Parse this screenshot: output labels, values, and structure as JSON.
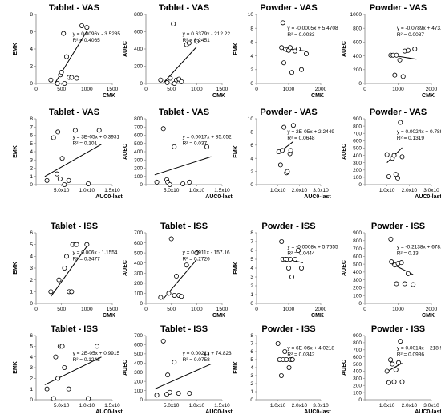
{
  "chart_data": [
    {
      "type": "scatter",
      "title": "Tablet - VAS",
      "xlabel": "CMK",
      "ylabel": "EMK",
      "xlim": [
        0,
        1500
      ],
      "ylim": [
        0,
        8
      ],
      "xticks": [
        "0",
        "500",
        "1000",
        "1500"
      ],
      "yticks": [
        "0",
        "2",
        "4",
        "6",
        "8"
      ],
      "series": [
        {
          "x": [
            290,
            420,
            480,
            500,
            540,
            560,
            600,
            650,
            700,
            800,
            900,
            1000
          ],
          "y": [
            0.4,
            0.0,
            1.0,
            1.3,
            5.8,
            0.0,
            3.1,
            0.7,
            0.7,
            0.6,
            6.7,
            6.5
          ]
        }
      ],
      "fit": {
        "slope": 0.0096,
        "intercept": -3.5285,
        "x": [
          380,
          1000
        ]
      },
      "annotations": [
        "y = 0.0096x - 3.5285",
        "R² = 0.4065"
      ]
    },
    {
      "type": "scatter",
      "title": "Tablet - VAS",
      "xlabel": "CMK",
      "ylabel": "AUEC",
      "xlim": [
        0,
        1500
      ],
      "ylim": [
        0,
        800
      ],
      "xticks": [
        "0",
        "500",
        "1000",
        "1500"
      ],
      "yticks": [
        "0",
        "200",
        "400",
        "600",
        "800"
      ],
      "series": [
        {
          "x": [
            290,
            420,
            480,
            540,
            560,
            600,
            650,
            700,
            800,
            850,
            1000
          ],
          "y": [
            40,
            10,
            60,
            690,
            0,
            40,
            50,
            20,
            450,
            470,
            490
          ]
        }
      ],
      "fit": {
        "slope": 0.6379,
        "intercept": -212.22,
        "x": [
          340,
          1000
        ]
      },
      "annotations": [
        "y = 0.6379x - 212.22",
        "R² = 0.2451"
      ]
    },
    {
      "type": "scatter",
      "title": "Powder - VAS",
      "xlabel": "CMK",
      "ylabel": "EMK",
      "xlim": [
        0,
        2000
      ],
      "ylim": [
        0,
        10
      ],
      "xticks": [
        "0",
        "1000",
        "2000"
      ],
      "yticks": [
        "0",
        "2",
        "4",
        "6",
        "8",
        "10"
      ],
      "series": [
        {
          "x": [
            780,
            820,
            850,
            900,
            950,
            1000,
            1050,
            1100,
            1200,
            1300,
            1400,
            1550
          ],
          "y": [
            5.2,
            8.8,
            3.0,
            5.0,
            4.9,
            4.8,
            5.2,
            1.6,
            4.7,
            5.0,
            2.0,
            4.3
          ]
        }
      ],
      "fit": {
        "slope": -0.0005,
        "intercept": 5.4708,
        "x": [
          780,
          1550
        ]
      },
      "annotations": [
        "y = -0.0005x + 5.4708",
        "R² = 0.0033"
      ]
    },
    {
      "type": "scatter",
      "title": "Powder - VAS",
      "xlabel": "CMK",
      "ylabel": "AUEC",
      "xlim": [
        0,
        2000
      ],
      "ylim": [
        0,
        1000
      ],
      "xticks": [
        "0",
        "1000",
        "2000"
      ],
      "yticks": [
        "0",
        "200",
        "400",
        "600",
        "800",
        "1000"
      ],
      "series": [
        {
          "x": [
            780,
            850,
            900,
            950,
            1050,
            1150,
            1200,
            1300,
            1500
          ],
          "y": [
            410,
            410,
            120,
            410,
            340,
            100,
            470,
            480,
            500
          ]
        }
      ],
      "fit": {
        "slope": -0.0789,
        "intercept": 473.64,
        "x": [
          780,
          1550
        ]
      },
      "annotations": [
        "y = -0.0789x + 473.64",
        "R² = 0.0087"
      ]
    },
    {
      "type": "scatter",
      "title": "Tablet - VAS",
      "xlabel": "AUC0-last",
      "ylabel": "EMK",
      "xlim": [
        0,
        175000
      ],
      "ylim": [
        0,
        8
      ],
      "xticks": [
        "",
        "5.0x10",
        "1.0x10",
        "1.5x10"
      ],
      "yticks": [
        "0",
        "1",
        "2",
        "3",
        "4",
        "5",
        "6",
        "7",
        "8"
      ],
      "series": [
        {
          "x": [
            25000,
            40000,
            48000,
            50000,
            55000,
            60000,
            65000,
            75000,
            90000,
            120000,
            145000
          ],
          "y": [
            0.5,
            5.7,
            1.3,
            6.4,
            0.7,
            3.2,
            0.0,
            0.5,
            6.6,
            0.1,
            6.6
          ]
        }
      ],
      "fit": {
        "slope": 3e-05,
        "intercept": 0.3931,
        "x": [
          20000,
          150000
        ]
      },
      "annotations": [
        "y = 3E-05x + 0.3931",
        "R² = 0.101"
      ]
    },
    {
      "type": "scatter",
      "title": "Tablet - VAS",
      "xlabel": "AUC0-last",
      "ylabel": "AUEC",
      "xlim": [
        0,
        175000
      ],
      "ylim": [
        0,
        800
      ],
      "xticks": [
        "",
        "5.0x10",
        "1.0x10",
        "1.5x10"
      ],
      "yticks": [
        "0",
        "100",
        "200",
        "300",
        "400",
        "500",
        "600",
        "700",
        "800"
      ],
      "series": [
        {
          "x": [
            25000,
            40000,
            48000,
            50000,
            55000,
            65000,
            85000,
            100000,
            140000
          ],
          "y": [
            30,
            680,
            60,
            30,
            0,
            460,
            10,
            30,
            460
          ]
        }
      ],
      "fit": {
        "slope": 0.0017,
        "intercept": 85.052,
        "x": [
          20000,
          150000
        ]
      },
      "annotations": [
        "y = 0.0017x + 85.052",
        "R² = 0.037"
      ]
    },
    {
      "type": "scatter",
      "title": "Powder - VAS",
      "xlabel": "AUC0-last",
      "ylabel": "EMK",
      "xlim": [
        0,
        375000
      ],
      "ylim": [
        0,
        10
      ],
      "xticks": [
        "",
        "1.0x10",
        "2.0x10",
        "3.0x10"
      ],
      "yticks": [
        "0",
        "2",
        "4",
        "6",
        "8",
        "10"
      ],
      "series": [
        {
          "x": [
            130000,
            140000,
            150000,
            160000,
            175000,
            180000,
            195000,
            200000,
            215000
          ],
          "y": [
            5.0,
            3.0,
            5.2,
            8.7,
            1.8,
            2.0,
            4.7,
            5.2,
            9.0
          ]
        }
      ],
      "fit": {
        "slope": 2e-05,
        "intercept": 2.2449,
        "x": [
          130000,
          215000
        ]
      },
      "annotations": [
        "y = 2E-05x + 2.2449",
        "R² = 0.0648"
      ]
    },
    {
      "type": "scatter",
      "title": "Powder - VAS",
      "xlabel": "AUC0-last",
      "ylabel": "AUEC",
      "xlim": [
        0,
        375000
      ],
      "ylim": [
        0,
        900
      ],
      "xticks": [
        "",
        "1.0x10",
        "2.0x10",
        "3.0x10"
      ],
      "yticks": [
        "0",
        "100",
        "200",
        "300",
        "400",
        "500",
        "600",
        "700",
        "800",
        "900"
      ],
      "series": [
        {
          "x": [
            125000,
            135000,
            155000,
            165000,
            175000,
            185000,
            200000,
            210000
          ],
          "y": [
            410,
            110,
            360,
            400,
            140,
            90,
            850,
            380
          ]
        }
      ],
      "fit": {
        "slope": 0.0024,
        "intercept": 0.789,
        "x": [
          125000,
          210000
        ]
      },
      "annotations": [
        "y = 0.0024x + 0.789",
        "R² = 0.1319"
      ]
    },
    {
      "type": "scatter",
      "title": "Tablet - ISS",
      "xlabel": "CMK",
      "ylabel": "EMK",
      "xlim": [
        0,
        1500
      ],
      "ylim": [
        0,
        6
      ],
      "xticks": [
        "0",
        "500",
        "1000",
        "1500"
      ],
      "yticks": [
        "0",
        "1",
        "2",
        "3",
        "4",
        "5",
        "6"
      ],
      "series": [
        {
          "x": [
            290,
            450,
            560,
            600,
            650,
            700,
            720,
            780,
            800,
            1000
          ],
          "y": [
            1.0,
            2.0,
            3.0,
            4.0,
            1.0,
            1.0,
            5.0,
            5.0,
            5.0,
            5.0
          ]
        }
      ],
      "fit": {
        "slope": 0.006,
        "intercept": -1.1554,
        "x": [
          290,
          1000
        ]
      },
      "annotations": [
        "y = 0.006x - 1.1554",
        "R² = 0.3477"
      ]
    },
    {
      "type": "scatter",
      "title": "Tablet - ISS",
      "xlabel": "CMK",
      "ylabel": "AUEC",
      "xlim": [
        0,
        1500
      ],
      "ylim": [
        0,
        700
      ],
      "xticks": [
        "0",
        "500",
        "1000",
        "1500"
      ],
      "yticks": [
        "0",
        "100",
        "200",
        "300",
        "400",
        "500",
        "600",
        "700"
      ],
      "series": [
        {
          "x": [
            290,
            450,
            500,
            560,
            600,
            650,
            700,
            800,
            1000
          ],
          "y": [
            60,
            100,
            640,
            80,
            270,
            80,
            70,
            380,
            500
          ]
        }
      ],
      "fit": {
        "slope": 0.5911,
        "intercept": -157.16,
        "x": [
          330,
          1000
        ]
      },
      "annotations": [
        "y = 0.5911x - 157.16",
        "R² = 0.2726"
      ]
    },
    {
      "type": "scatter",
      "title": "Powder - ISS",
      "xlabel": "CMK",
      "ylabel": "EMK",
      "xlim": [
        0,
        2000
      ],
      "ylim": [
        0,
        8
      ],
      "xticks": [
        "0",
        "1000",
        "2000"
      ],
      "yticks": [
        "0",
        "1",
        "2",
        "3",
        "4",
        "5",
        "6",
        "7",
        "8"
      ],
      "series": [
        {
          "x": [
            780,
            820,
            900,
            950,
            1000,
            1050,
            1100,
            1200,
            1300,
            1400
          ],
          "y": [
            7.0,
            5.0,
            5.0,
            5.0,
            4.0,
            5.0,
            3.0,
            5.0,
            6.0,
            4.0
          ]
        }
      ],
      "fit": {
        "slope": -0.0008,
        "intercept": 5.7655,
        "x": [
          780,
          1450
        ]
      },
      "annotations": [
        "y = -0.0008x + 5.7655",
        "R² = 0.0444"
      ]
    },
    {
      "type": "scatter",
      "title": "Powder - ISS",
      "xlabel": "CMK",
      "ylabel": "AUEC",
      "xlim": [
        0,
        2000
      ],
      "ylim": [
        0,
        900
      ],
      "xticks": [
        "0",
        "1000",
        "2000"
      ],
      "yticks": [
        "0",
        "100",
        "200",
        "300",
        "400",
        "500",
        "600",
        "700",
        "800",
        "900"
      ],
      "series": [
        {
          "x": [
            780,
            800,
            900,
            950,
            1000,
            1100,
            1200,
            1300,
            1450
          ],
          "y": [
            820,
            530,
            490,
            250,
            510,
            520,
            250,
            380,
            240
          ]
        }
      ],
      "fit": {
        "slope": -0.2138,
        "intercept": 678.01,
        "x": [
          780,
          1450
        ]
      },
      "annotations": [
        "y = -0.2138x + 678.01",
        "R² = 0.13"
      ]
    },
    {
      "type": "scatter",
      "title": "Tablet - ISS",
      "xlabel": "AUC0-last",
      "ylabel": "EMK",
      "xlim": [
        0,
        175000
      ],
      "ylim": [
        0,
        6
      ],
      "xticks": [
        "",
        "5.0x10",
        "1.0x10",
        "1.5x10"
      ],
      "yticks": [
        "0",
        "1",
        "2",
        "3",
        "4",
        "5",
        "6"
      ],
      "series": [
        {
          "x": [
            25000,
            40000,
            45000,
            50000,
            55000,
            60000,
            65000,
            75000,
            120000,
            140000
          ],
          "y": [
            1.0,
            0.1,
            4.0,
            2.0,
            5.0,
            5.0,
            3.0,
            1.0,
            0.1,
            5.0
          ]
        }
      ],
      "fit": {
        "slope": 2e-05,
        "intercept": 0.9915,
        "x": [
          20000,
          150000
        ]
      },
      "annotations": [
        "y = 2E-05x + 0.9915",
        "R² = 0.1243"
      ]
    },
    {
      "type": "scatter",
      "title": "Tablet - ISS",
      "xlabel": "AUC0-last",
      "ylabel": "AUEC",
      "xlim": [
        0,
        175000
      ],
      "ylim": [
        0,
        700
      ],
      "xticks": [
        "",
        "5.0x10",
        "1.0x10",
        "1.5x10"
      ],
      "yticks": [
        "0",
        "100",
        "200",
        "300",
        "400",
        "500",
        "600",
        "700"
      ],
      "series": [
        {
          "x": [
            25000,
            40000,
            48000,
            50000,
            55000,
            65000,
            75000,
            100000,
            140000
          ],
          "y": [
            50,
            640,
            60,
            270,
            80,
            410,
            70,
            70,
            500
          ]
        }
      ],
      "fit": {
        "slope": 0.0021,
        "intercept": 74.823,
        "x": [
          20000,
          150000
        ]
      },
      "annotations": [
        "y = 0.0021x + 74.823",
        "R² = 0.0758"
      ]
    },
    {
      "type": "scatter",
      "title": "Powder - ISS",
      "xlabel": "AUC0-last",
      "ylabel": "EMK",
      "xlim": [
        0,
        375000
      ],
      "ylim": [
        0,
        8
      ],
      "xticks": [
        "",
        "1.0x10",
        "2.0x10",
        "3.0x10"
      ],
      "yticks": [
        "0",
        "1",
        "2",
        "3",
        "4",
        "5",
        "6",
        "7",
        "8"
      ],
      "series": [
        {
          "x": [
            125000,
            135000,
            145000,
            155000,
            165000,
            175000,
            190000,
            200000,
            210000
          ],
          "y": [
            7.0,
            5.0,
            3.0,
            5.0,
            6.0,
            5.0,
            4.0,
            5.0,
            5.0
          ]
        }
      ],
      "fit": {
        "slope": 6e-06,
        "intercept": 4.0218,
        "x": [
          125000,
          210000
        ]
      },
      "annotations": [
        "y = 6E-06x + 4.0218",
        "R² = 0.0342"
      ]
    },
    {
      "type": "scatter",
      "title": "Powder - ISS",
      "xlabel": "AUC0-last",
      "ylabel": "AUEC",
      "xlim": [
        0,
        375000
      ],
      "ylim": [
        0,
        900
      ],
      "xticks": [
        "",
        "1.0x10",
        "2.0x10",
        "3.0x10"
      ],
      "yticks": [
        "0",
        "100",
        "200",
        "300",
        "400",
        "500",
        "600",
        "700",
        "800",
        "900"
      ],
      "series": [
        {
          "x": [
            125000,
            135000,
            145000,
            155000,
            165000,
            175000,
            190000,
            200000,
            210000
          ],
          "y": [
            400,
            240,
            560,
            500,
            250,
            420,
            520,
            820,
            250
          ]
        }
      ],
      "fit": {
        "slope": 0.0014,
        "intercept": 218.94,
        "x": [
          125000,
          210000
        ]
      },
      "annotations": [
        "y = 0.0014x + 218.94",
        "R² = 0.0936"
      ]
    }
  ]
}
